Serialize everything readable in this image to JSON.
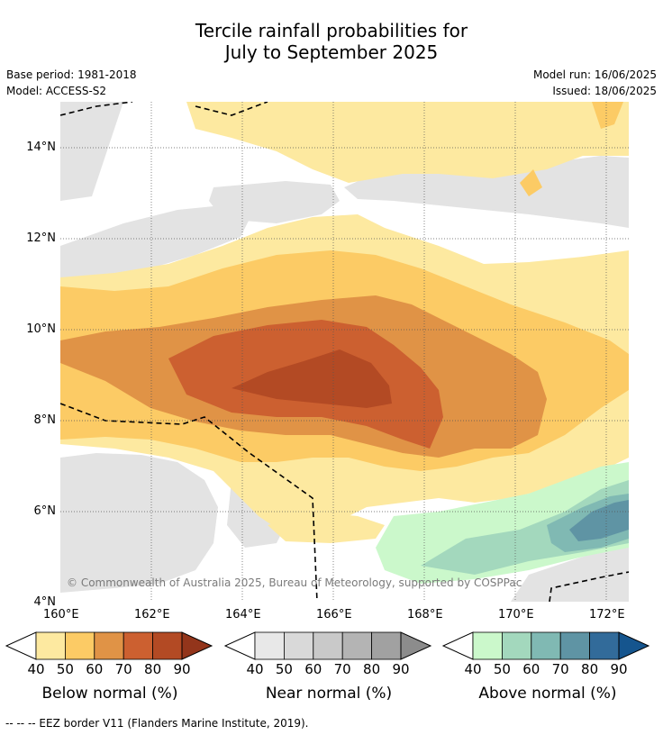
{
  "title_line1": "Tercile rainfall probabilities for",
  "title_line2": "July to September 2025",
  "info": {
    "base_period": "Base period: 1981-2018",
    "model": "Model: ACCESS-S2",
    "model_run": "Model run: 16/06/2025",
    "issued": "Issued: 18/06/2025"
  },
  "map": {
    "lon_labels": [
      "160°E",
      "162°E",
      "164°E",
      "166°E",
      "168°E",
      "170°E",
      "172°E"
    ],
    "lat_labels": [
      "14°N",
      "12°N",
      "10°N",
      "8°N",
      "6°N",
      "4°N"
    ],
    "copyright": "© Commonwealth of Australia 2025, Bureau of Meteorology, supported by COSPPac"
  },
  "legends": [
    {
      "title": "Below normal (%)",
      "ticks": [
        "40",
        "50",
        "60",
        "70",
        "80",
        "90"
      ],
      "colors": [
        "#fde9a0",
        "#fccb65",
        "#e09346",
        "#cc6030",
        "#b34a24",
        "#93351b"
      ]
    },
    {
      "title": "Near normal (%)",
      "ticks": [
        "40",
        "50",
        "60",
        "70",
        "80",
        "90"
      ],
      "colors": [
        "#e8e8e8",
        "#d9d9d9",
        "#c9c9c9",
        "#b4b4b4",
        "#a1a1a1",
        "#8c8c8c"
      ]
    },
    {
      "title": "Above normal (%)",
      "ticks": [
        "40",
        "50",
        "60",
        "70",
        "80",
        "90"
      ],
      "colors": [
        "#cbf8cb",
        "#a3d8bd",
        "#80b9b3",
        "#5f94a4",
        "#326b9a",
        "#15558e"
      ]
    }
  ],
  "footer": "--  --  -- EEZ border V11 (Flanders Marine Institute, 2019)."
}
